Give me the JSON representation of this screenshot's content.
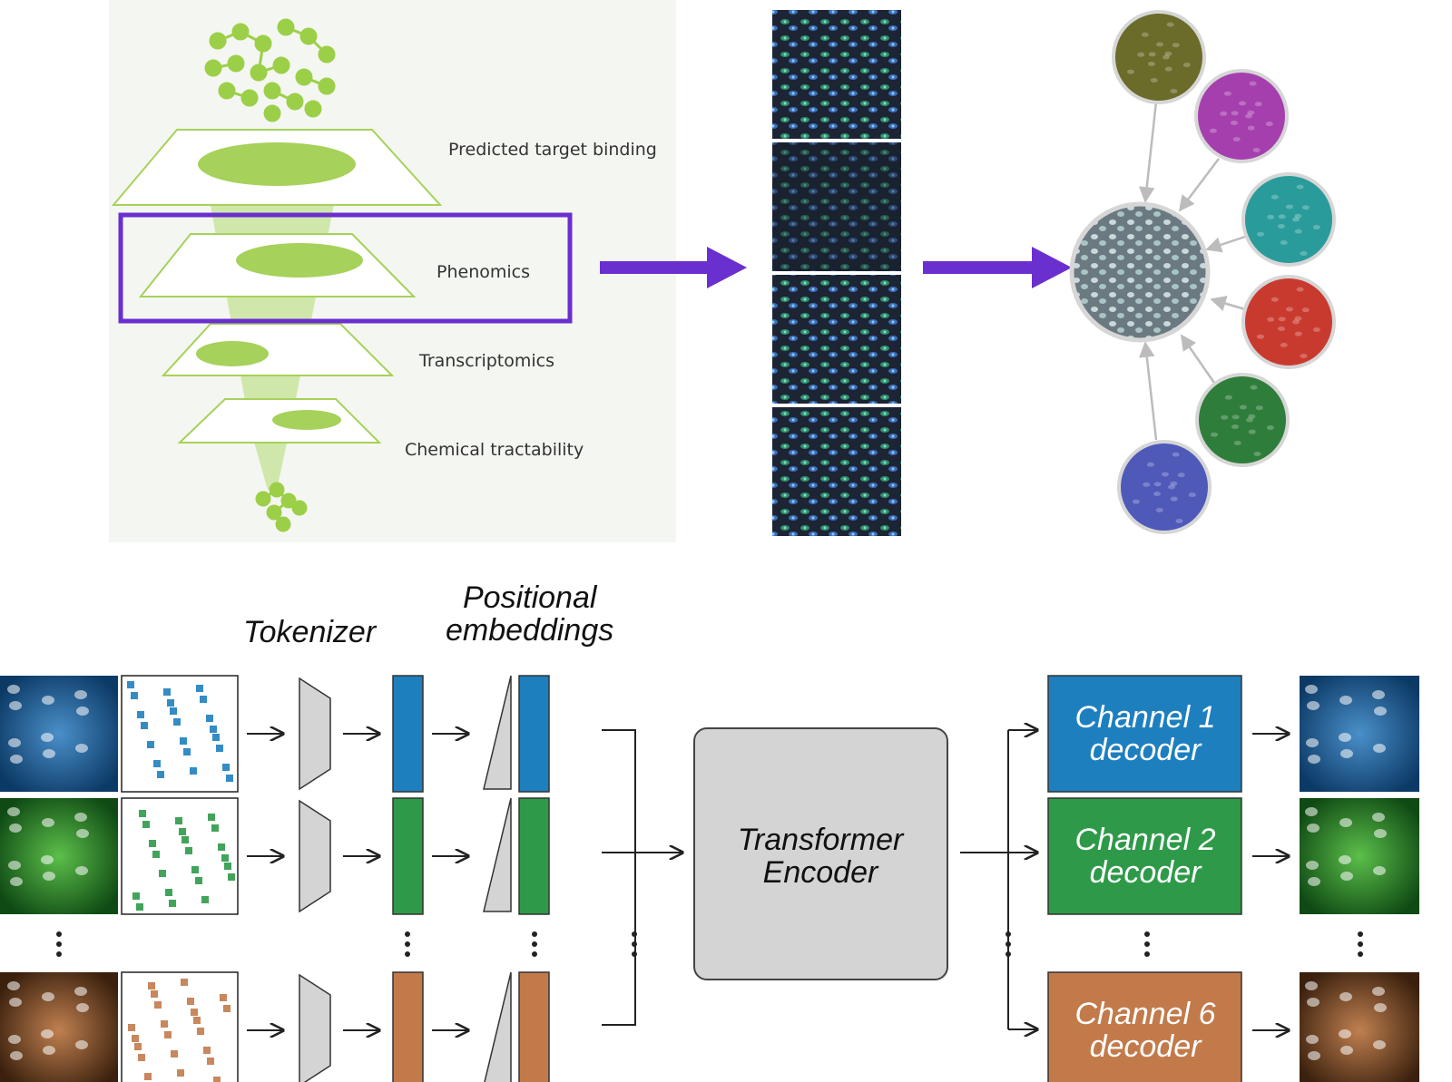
{
  "colors": {
    "accent_purple": "#6a2fcf",
    "funnel_green": "#a6d15a",
    "channel1": "#1e7fbf",
    "channel2": "#2e9a49",
    "channel6": "#c27a4a",
    "encoder_gray": "#d4d4d4"
  },
  "funnel": {
    "layers": [
      {
        "label": "Predicted target binding"
      },
      {
        "label": "Phenomics"
      },
      {
        "label": "Transcriptomics"
      },
      {
        "label": "Chemical tractability"
      }
    ],
    "highlighted": "Phenomics"
  },
  "microscopy_panels": 4,
  "channel_circles": [
    {
      "name": "yellow-channel",
      "color": "#6b6b2a"
    },
    {
      "name": "magenta-channel",
      "color": "#a53fae"
    },
    {
      "name": "cyan-channel",
      "color": "#2a9b9b"
    },
    {
      "name": "red-channel",
      "color": "#c93a2e"
    },
    {
      "name": "green-channel",
      "color": "#2f7d3a"
    },
    {
      "name": "blue-channel",
      "color": "#4e59b8"
    }
  ],
  "pipeline": {
    "tokenizer_label": "Tokenizer",
    "positional_label_line1": "Positional",
    "positional_label_line2": "embeddings",
    "encoder_line1": "Transformer",
    "encoder_line2": "Encoder",
    "decoders": [
      {
        "line1": "Channel 1",
        "line2": "decoder"
      },
      {
        "line1": "Channel 2",
        "line2": "decoder"
      },
      {
        "line1": "Channel 6",
        "line2": "decoder"
      }
    ]
  }
}
